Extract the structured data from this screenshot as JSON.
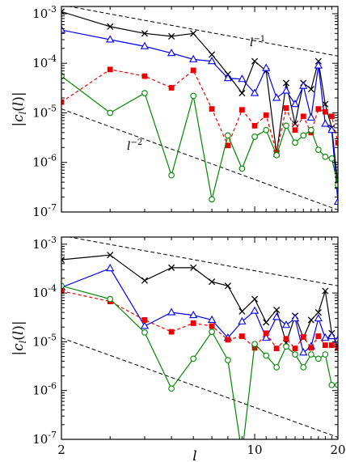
{
  "chart_data": [
    {
      "type": "line",
      "xscale": "log",
      "yscale": "log",
      "xlim": [
        2,
        20
      ],
      "ylim": [
        1e-07,
        0.0014
      ],
      "ylabel": "|c_l(l)|",
      "xlabel": "",
      "grid": false,
      "x": [
        2,
        3,
        4,
        5,
        6,
        7,
        8,
        9,
        10,
        11,
        12,
        13,
        14,
        15,
        16,
        17,
        18,
        19,
        20
      ],
      "annotations": [
        {
          "text": "l",
          "exp": "−1",
          "x": 9.6,
          "y": 0.00022
        },
        {
          "text": "l",
          "exp": "−2",
          "x": 3.45,
          "y": 1.8e-06
        }
      ],
      "reference_lines": [
        {
          "style": "dashed",
          "x": [
            2,
            20
          ],
          "y": [
            0.0015,
            0.00014
          ]
        },
        {
          "style": "dashed",
          "x": [
            2,
            20
          ],
          "y": [
            1.2e-05,
            1.1e-07
          ]
        }
      ],
      "series": [
        {
          "color": "#000000",
          "marker": "x",
          "dash": false,
          "values": [
            0.0011,
            0.00055,
            0.0004,
            0.00035,
            0.0004,
            0.00015,
            6e-05,
            2.5e-05,
            0.00011,
            7e-05,
            1.5e-06,
            4e-05,
            6e-06,
            4e-05,
            3e-05,
            0.00011,
            1.5e-05,
            5e-06,
            3.5e-07
          ]
        },
        {
          "color": "#0000ee",
          "marker": "triangle",
          "dash": false,
          "values": [
            0.00047,
            0.0003,
            0.00022,
            0.00016,
            0.00012,
            0.00011,
            5e-05,
            4.8e-05,
            2.5e-05,
            8e-05,
            2e-05,
            2.8e-05,
            1.5e-05,
            3.5e-05,
            8e-06,
            9e-05,
            6e-06,
            4.5e-06,
            1.6e-07
          ]
        },
        {
          "color": "#ee0000",
          "marker": "square",
          "dash": true,
          "values": [
            1.65e-05,
            7.5e-05,
            5.5e-05,
            3.2e-05,
            7.2e-05,
            1.2e-05,
            2.2e-06,
            1.15e-05,
            5.5e-06,
            9e-06,
            1.6e-06,
            1.25e-05,
            4.5e-06,
            8.5e-06,
            4e-06,
            1.2e-05,
            1.05e-05,
            8.5e-06,
            2.5e-06
          ]
        },
        {
          "color": "#008800",
          "marker": "circle",
          "dash": false,
          "values": [
            5.5e-05,
            1e-05,
            2.5e-05,
            5.5e-07,
            2.2e-05,
            1.8e-07,
            3.5e-06,
            7.5e-07,
            3.3e-06,
            4.5e-06,
            1.4e-06,
            5.5e-06,
            2.5e-06,
            3.5e-06,
            4.5e-06,
            1.8e-06,
            1.3e-06,
            1.2e-06,
            3.5e-07
          ]
        }
      ]
    },
    {
      "type": "line",
      "xscale": "log",
      "yscale": "log",
      "xlim": [
        2,
        20
      ],
      "ylim": [
        1e-07,
        0.0014
      ],
      "ylabel": "|c_l(l)|",
      "xlabel": "l",
      "grid": false,
      "x": [
        2,
        3,
        4,
        5,
        6,
        7,
        8,
        9,
        10,
        11,
        12,
        13,
        14,
        15,
        16,
        17,
        18,
        19,
        20
      ],
      "annotations": [],
      "reference_lines": [
        {
          "style": "dashed",
          "x": [
            2,
            20
          ],
          "y": [
            0.0015,
            0.00014
          ]
        },
        {
          "style": "dashed",
          "x": [
            2,
            20
          ],
          "y": [
            1.2e-05,
            1.1e-07
          ]
        }
      ],
      "series": [
        {
          "color": "#000000",
          "marker": "x",
          "dash": false,
          "values": [
            0.00048,
            0.0006,
            0.00018,
            0.00033,
            0.00033,
            0.00017,
            0.00014,
            4.2e-05,
            7.5e-05,
            2.5e-05,
            4.5e-05,
            9.5e-06,
            3.4e-05,
            1.2e-05,
            2.8e-05,
            4e-05,
            0.00011,
            1.5e-05,
            7.5e-06
          ]
        },
        {
          "color": "#0000ee",
          "marker": "triangle",
          "dash": false,
          "values": [
            0.00013,
            0.00032,
            2.1e-05,
            4e-05,
            3.5e-05,
            2.8e-05,
            1.2e-05,
            2.6e-05,
            4.3e-05,
            1.2e-05,
            3.2e-05,
            2.2e-05,
            3e-05,
            6e-06,
            8e-06,
            3e-05,
            1.2e-05,
            1.3e-05,
            1.1e-05
          ]
        },
        {
          "color": "#ee0000",
          "marker": "square",
          "dash": true,
          "values": [
            0.00011,
            6.7e-05,
            2.8e-05,
            1.6e-05,
            2.4e-05,
            2.1e-05,
            1.1e-05,
            1.3e-05,
            7.5e-06,
            1.5e-05,
            7.3e-06,
            1.15e-05,
            7.3e-06,
            1.25e-05,
            7.5e-06,
            1.3e-05,
            8.5e-06,
            8.5e-06,
            7.5e-06
          ]
        },
        {
          "color": "#008800",
          "marker": "circle",
          "dash": false,
          "values": [
            0.00014,
            7.5e-05,
            1.55e-05,
            1.1e-06,
            4.5e-06,
            1.6e-05,
            4.2e-06,
            5e-08,
            9e-06,
            5.2e-06,
            3e-06,
            8e-06,
            5.5e-06,
            3e-06,
            5.5e-06,
            4.5e-06,
            5.5e-06,
            1.3e-06,
            1.3e-06
          ]
        }
      ]
    }
  ],
  "axes_text": {
    "y_tick_exps": [
      "-3",
      "-4",
      "-5",
      "-6",
      "-7"
    ],
    "y_tick_base": "10",
    "x_tick_labels": [
      {
        "value": 2,
        "label": "2"
      },
      {
        "value": 10,
        "label": "10"
      },
      {
        "value": 20,
        "label": "20"
      }
    ]
  }
}
